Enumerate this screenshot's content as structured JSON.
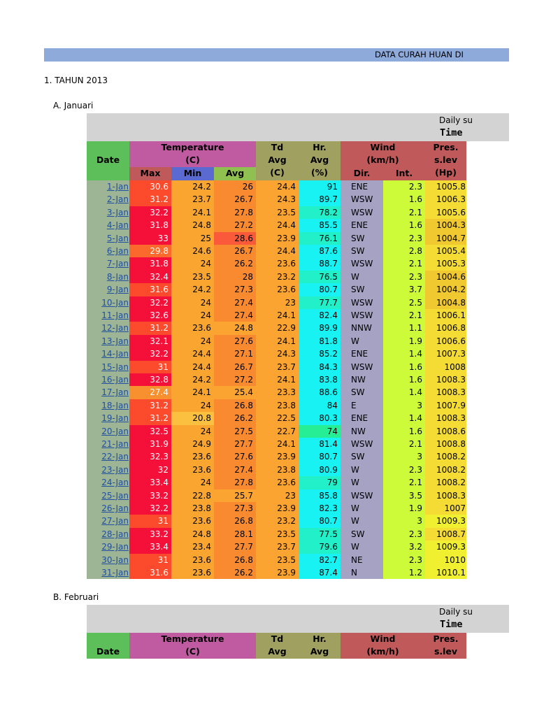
{
  "banner": {
    "title": "DATA CURAH HUAN DI"
  },
  "section_year": "1. TAHUN 2013",
  "section_jan": "A. Januari",
  "section_feb": "B. Februari",
  "header": {
    "daily_summary": "Daily su",
    "time": "Time",
    "date": "Date",
    "temperature": "Temperature",
    "temp_unit": "(C)",
    "td": "Td",
    "td_avg": "Avg",
    "td_unit": "(C)",
    "hr": "Hr.",
    "hr_avg": "Avg",
    "hr_unit": "(%)",
    "wind": "Wind",
    "wind_unit": "(km/h)",
    "pres": "Pres.",
    "pres_lev": "s.lev",
    "pres_unit": "(Hp)",
    "max": "Max",
    "min": "Min",
    "avg": "Avg",
    "dir": "Dir.",
    "int": "Int."
  },
  "colors": {
    "date_header": "#5cbf5a",
    "temperature_header": "#c05aa1",
    "td_header": "#a0a060",
    "hr_header": "#a0a060",
    "wind_header": "#c05a5a",
    "pres_header": "#c05a5a",
    "max_header": "#c05a5a",
    "min_header": "#5a6ad0",
    "avg_header": "#90c050"
  },
  "january_rows": [
    {
      "date": "1-Jan",
      "max": "30.6",
      "min": "24.2",
      "avg": "26",
      "td": "24.4",
      "hr": "91",
      "dir": "ENE",
      "int": "2.3",
      "pres": "1005.8"
    },
    {
      "date": "2-Jan",
      "max": "31.2",
      "min": "23.7",
      "avg": "26.7",
      "td": "24.3",
      "hr": "89.7",
      "dir": "WSW",
      "int": "1.6",
      "pres": "1006.3"
    },
    {
      "date": "3-Jan",
      "max": "32.2",
      "min": "24.1",
      "avg": "27.8",
      "td": "23.5",
      "hr": "78.2",
      "dir": "WSW",
      "int": "2.1",
      "pres": "1005.6"
    },
    {
      "date": "4-Jan",
      "max": "31.8",
      "min": "24.8",
      "avg": "27.2",
      "td": "24.4",
      "hr": "85.5",
      "dir": "ENE",
      "int": "1.6",
      "pres": "1004.3"
    },
    {
      "date": "5-Jan",
      "max": "33",
      "min": "25",
      "avg": "28.6",
      "td": "23.9",
      "hr": "76.1",
      "dir": "SW",
      "int": "2.3",
      "pres": "1004.7"
    },
    {
      "date": "6-Jan",
      "max": "29.8",
      "min": "24.6",
      "avg": "26.7",
      "td": "24.4",
      "hr": "87.6",
      "dir": "SW",
      "int": "2.8",
      "pres": "1005.4"
    },
    {
      "date": "7-Jan",
      "max": "31.8",
      "min": "24",
      "avg": "26.2",
      "td": "23.6",
      "hr": "88.7",
      "dir": "WSW",
      "int": "2.1",
      "pres": "1005.3"
    },
    {
      "date": "8-Jan",
      "max": "32.4",
      "min": "23.5",
      "avg": "28",
      "td": "23.2",
      "hr": "76.5",
      "dir": "W",
      "int": "2.3",
      "pres": "1004.6"
    },
    {
      "date": "9-Jan",
      "max": "31.6",
      "min": "24.2",
      "avg": "27.3",
      "td": "23.6",
      "hr": "80.7",
      "dir": "SW",
      "int": "3.7",
      "pres": "1004.2"
    },
    {
      "date": "10-Jan",
      "max": "32.2",
      "min": "24",
      "avg": "27.4",
      "td": "23",
      "hr": "77.7",
      "dir": "WSW",
      "int": "2.5",
      "pres": "1004.8"
    },
    {
      "date": "11-Jan",
      "max": "32.6",
      "min": "24",
      "avg": "27.4",
      "td": "24.1",
      "hr": "82.4",
      "dir": "WSW",
      "int": "2.1",
      "pres": "1006.1"
    },
    {
      "date": "12-Jan",
      "max": "31.2",
      "min": "23.6",
      "avg": "24.8",
      "td": "22.9",
      "hr": "89.9",
      "dir": "NNW",
      "int": "1.1",
      "pres": "1006.8"
    },
    {
      "date": "13-Jan",
      "max": "32.1",
      "min": "24",
      "avg": "27.6",
      "td": "24.1",
      "hr": "81.8",
      "dir": "W",
      "int": "1.9",
      "pres": "1006.6"
    },
    {
      "date": "14-Jan",
      "max": "32.2",
      "min": "24.4",
      "avg": "27.1",
      "td": "24.3",
      "hr": "85.2",
      "dir": "ENE",
      "int": "1.4",
      "pres": "1007.3"
    },
    {
      "date": "15-Jan",
      "max": "31",
      "min": "24.4",
      "avg": "26.7",
      "td": "23.7",
      "hr": "84.3",
      "dir": "WSW",
      "int": "1.6",
      "pres": "1008"
    },
    {
      "date": "16-Jan",
      "max": "32.8",
      "min": "24.2",
      "avg": "27.2",
      "td": "24.1",
      "hr": "83.8",
      "dir": "NW",
      "int": "1.6",
      "pres": "1008.3"
    },
    {
      "date": "17-Jan",
      "max": "27.4",
      "min": "24.1",
      "avg": "25.4",
      "td": "23.3",
      "hr": "88.6",
      "dir": "SW",
      "int": "1.4",
      "pres": "1008.3"
    },
    {
      "date": "18-Jan",
      "max": "31.2",
      "min": "24",
      "avg": "26.8",
      "td": "23.8",
      "hr": "84",
      "dir": "E",
      "int": "3",
      "pres": "1007.9"
    },
    {
      "date": "19-Jan",
      "max": "31.2",
      "min": "20.8",
      "avg": "26.2",
      "td": "22.5",
      "hr": "80.3",
      "dir": "ENE",
      "int": "1.4",
      "pres": "1008.3"
    },
    {
      "date": "20-Jan",
      "max": "32.5",
      "min": "24",
      "avg": "27.5",
      "td": "22.7",
      "hr": "74",
      "dir": "NW",
      "int": "1.6",
      "pres": "1008.6"
    },
    {
      "date": "21-Jan",
      "max": "31.9",
      "min": "24.9",
      "avg": "27.7",
      "td": "24.1",
      "hr": "81.4",
      "dir": "WSW",
      "int": "2.1",
      "pres": "1008.8"
    },
    {
      "date": "22-Jan",
      "max": "32.3",
      "min": "23.6",
      "avg": "27.6",
      "td": "23.9",
      "hr": "80.7",
      "dir": "SW",
      "int": "3",
      "pres": "1008.2"
    },
    {
      "date": "23-Jan",
      "max": "32",
      "min": "23.6",
      "avg": "27.4",
      "td": "23.8",
      "hr": "80.9",
      "dir": "W",
      "int": "2.3",
      "pres": "1008.2"
    },
    {
      "date": "24-Jan",
      "max": "33.4",
      "min": "24",
      "avg": "27.8",
      "td": "23.6",
      "hr": "79",
      "dir": "W",
      "int": "2.1",
      "pres": "1008.2"
    },
    {
      "date": "25-Jan",
      "max": "33.2",
      "min": "22.8",
      "avg": "25.7",
      "td": "23",
      "hr": "85.8",
      "dir": "WSW",
      "int": "3.5",
      "pres": "1008.3"
    },
    {
      "date": "26-Jan",
      "max": "32.2",
      "min": "23.8",
      "avg": "27.3",
      "td": "23.9",
      "hr": "82.3",
      "dir": "W",
      "int": "1.9",
      "pres": "1007"
    },
    {
      "date": "27-Jan",
      "max": "31",
      "min": "23.6",
      "avg": "26.8",
      "td": "23.2",
      "hr": "80.7",
      "dir": "W",
      "int": "3",
      "pres": "1009.3"
    },
    {
      "date": "28-Jan",
      "max": "33.2",
      "min": "24.8",
      "avg": "28.1",
      "td": "23.5",
      "hr": "77.5",
      "dir": "SW",
      "int": "2.3",
      "pres": "1008.7"
    },
    {
      "date": "29-Jan",
      "max": "33.4",
      "min": "23.4",
      "avg": "27.7",
      "td": "23.7",
      "hr": "79.6",
      "dir": "W",
      "int": "3.2",
      "pres": "1009.3"
    },
    {
      "date": "30-Jan",
      "max": "31",
      "min": "23.6",
      "avg": "26.8",
      "td": "23.5",
      "hr": "82.7",
      "dir": "NE",
      "int": "2.3",
      "pres": "1010"
    },
    {
      "date": "31-Jan",
      "max": "31.6",
      "min": "23.6",
      "avg": "26.2",
      "td": "23.9",
      "hr": "87.4",
      "dir": "N",
      "int": "1.2",
      "pres": "1010.1"
    }
  ]
}
